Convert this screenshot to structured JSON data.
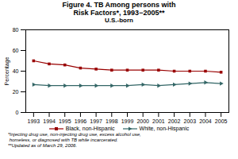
{
  "chart_data": {
    "type": "line",
    "title": "Figure 4. TB Among persons with\nRisk Factors*, 1993−2005**",
    "subtitle": "U.S.-born",
    "y_label": "Percentage",
    "x": [
      1993,
      1994,
      1995,
      1996,
      1997,
      1998,
      1999,
      2000,
      2001,
      2002,
      2003,
      2004,
      2005
    ],
    "series": [
      {
        "name": "Black, non-Hispanic",
        "color": "#990000",
        "marker": "square",
        "values": [
          50,
          47,
          46,
          43,
          42,
          41,
          41,
          41,
          41,
          40,
          40,
          40,
          39
        ]
      },
      {
        "name": "White, non-Hispanic",
        "color": "#336666",
        "marker": "triangle-right",
        "values": [
          27,
          26,
          26,
          26,
          26,
          26,
          26,
          27,
          26,
          27,
          28,
          29,
          28
        ]
      }
    ],
    "xlim": [
      1992.5,
      2005.5
    ],
    "xticks": [
      1993,
      1994,
      1995,
      1996,
      1997,
      1998,
      1999,
      2000,
      2001,
      2002,
      2003,
      2004,
      2005
    ],
    "ylim": [
      0,
      80
    ],
    "yticks": [
      0,
      20,
      40,
      60,
      80
    ],
    "grid": false,
    "legend": "bottom",
    "annotations": [
      "*Injecting drug use, non-injecting drug use, excess alcohol use,\n homeless, or diagnosed with TB while incarcerated.",
      "**Updated as of March 29, 2006."
    ]
  }
}
